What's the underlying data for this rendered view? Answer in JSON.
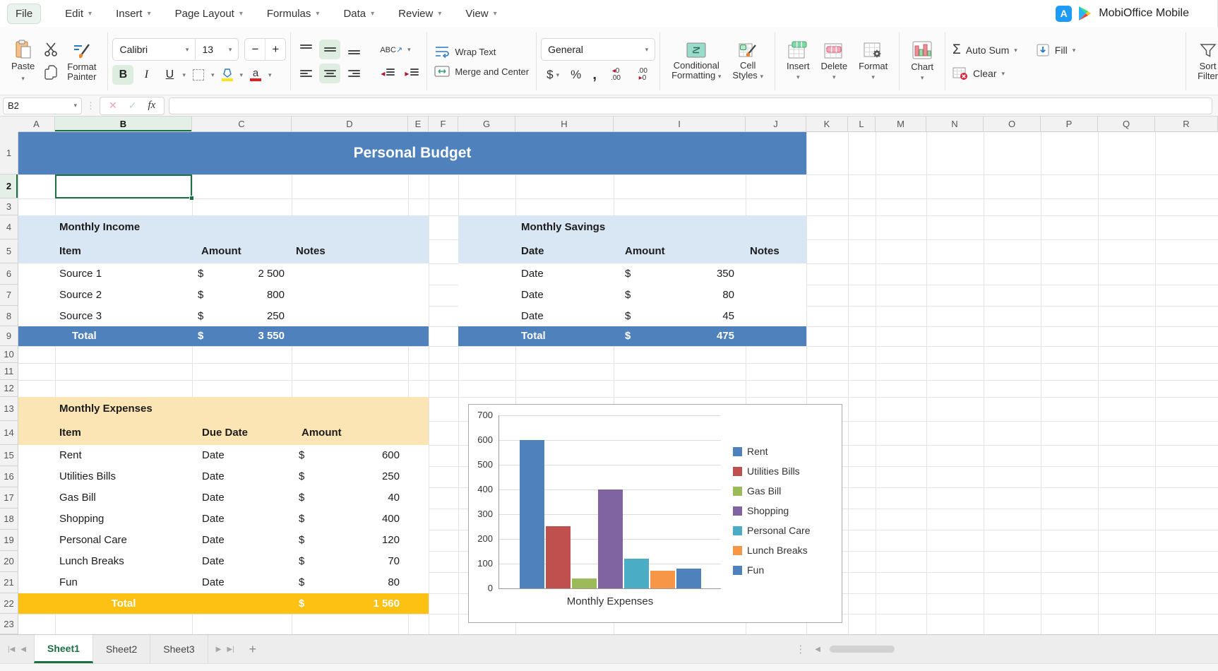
{
  "menu": {
    "items": [
      "File",
      "Edit",
      "Insert",
      "Page Layout",
      "Formulas",
      "Data",
      "Review",
      "View"
    ],
    "brand": "MobiOffice Mobile"
  },
  "toolbar": {
    "paste": "Paste",
    "format_painter_line1": "Format",
    "format_painter_line2": "Painter",
    "font_name": "Calibri",
    "font_size": "13",
    "font_minus": "−",
    "font_plus": "+",
    "bold": "B",
    "italic": "I",
    "underline": "U",
    "font_color_glyph": "a",
    "orientation": "ABC",
    "wrap_text": "Wrap Text",
    "merge_center": "Merge and Center",
    "number_format": "General",
    "currency": "$",
    "percent": "%",
    "comma": ",",
    "decimal_inc_top": "0",
    "decimal_inc_bottom": ".00",
    "decimal_dec_top": ".00",
    "decimal_dec_bottom": "0",
    "conditional_line1": "Conditional",
    "conditional_line2": "Formatting",
    "cell_styles_line1": "Cell",
    "cell_styles_line2": "Styles",
    "insert": "Insert",
    "delete": "Delete",
    "format": "Format",
    "chart": "Chart",
    "sigma": "Σ",
    "auto_sum": "Auto Sum",
    "fill": "Fill",
    "clear": "Clear",
    "sort_line1": "Sort",
    "sort_line2": "Filter"
  },
  "formula_bar": {
    "name_box": "B2",
    "cancel": "✕",
    "confirm": "✓",
    "fx": "fx",
    "value": ""
  },
  "grid": {
    "columns": [
      "A",
      "B",
      "C",
      "D",
      "E",
      "F",
      "G",
      "H",
      "I",
      "J",
      "K",
      "L",
      "M",
      "N",
      "O",
      "P",
      "Q",
      "R"
    ],
    "row_count": 23,
    "selection": {
      "cell": "B2",
      "column": "B",
      "row": 2
    }
  },
  "sheet_content": {
    "title": "Personal Budget",
    "income": {
      "title": "Monthly Income",
      "headers": [
        "Item",
        "Amount",
        "Notes"
      ],
      "rows": [
        {
          "item": "Source 1",
          "currency": "$",
          "amount": "2 500"
        },
        {
          "item": "Source 2",
          "currency": "$",
          "amount": "800"
        },
        {
          "item": "Source 3",
          "currency": "$",
          "amount": "250"
        }
      ],
      "total": {
        "label": "Total",
        "currency": "$",
        "amount": "3 550"
      }
    },
    "savings": {
      "title": "Monthly Savings",
      "headers": [
        "Date",
        "Amount",
        "Notes"
      ],
      "rows": [
        {
          "item": "Date",
          "currency": "$",
          "amount": "350"
        },
        {
          "item": "Date",
          "currency": "$",
          "amount": "80"
        },
        {
          "item": "Date",
          "currency": "$",
          "amount": "45"
        }
      ],
      "total": {
        "label": "Total",
        "currency": "$",
        "amount": "475"
      }
    },
    "expenses": {
      "title": "Monthly Expenses",
      "headers": [
        "Item",
        "Due Date",
        "Amount"
      ],
      "rows": [
        {
          "item": "Rent",
          "due": "Date",
          "currency": "$",
          "amount": "600"
        },
        {
          "item": "Utilities Bills",
          "due": "Date",
          "currency": "$",
          "amount": "250"
        },
        {
          "item": "Gas Bill",
          "due": "Date",
          "currency": "$",
          "amount": "40"
        },
        {
          "item": "Shopping",
          "due": "Date",
          "currency": "$",
          "amount": "400"
        },
        {
          "item": "Personal Care",
          "due": "Date",
          "currency": "$",
          "amount": "120"
        },
        {
          "item": "Lunch Breaks",
          "due": "Date",
          "currency": "$",
          "amount": "70"
        },
        {
          "item": "Fun",
          "due": "Date",
          "currency": "$",
          "amount": "80"
        }
      ],
      "total": {
        "label": "Total",
        "currency": "$",
        "amount": "1 560"
      }
    }
  },
  "chart_data": {
    "type": "bar",
    "title": "",
    "xlabel": "Monthly Expenses",
    "ylabel": "",
    "ylim": [
      0,
      700
    ],
    "ytick_step": 100,
    "grid": true,
    "legend_position": "right",
    "series": [
      {
        "name": "Rent",
        "value": 600,
        "color": "#4f81bd"
      },
      {
        "name": "Utilities Bills",
        "value": 250,
        "color": "#c0504d"
      },
      {
        "name": "Gas Bill",
        "value": 40,
        "color": "#9bbb59"
      },
      {
        "name": "Shopping",
        "value": 400,
        "color": "#8064a2"
      },
      {
        "name": "Personal Care",
        "value": 120,
        "color": "#4bacc6"
      },
      {
        "name": "Lunch Breaks",
        "value": 70,
        "color": "#f79646"
      },
      {
        "name": "Fun",
        "value": 80,
        "color": "#4f81bd"
      }
    ]
  },
  "tabs": {
    "sheets": [
      "Sheet1",
      "Sheet2",
      "Sheet3"
    ],
    "active_index": 0,
    "add_label": "+"
  },
  "colors": {
    "banner_blue": "#4f81bd",
    "band_blue": "#d9e6f4",
    "band_orange": "#fbe5b4",
    "total_orange": "#fcc113",
    "selection_green": "#1d7044",
    "brand_green": "#217346"
  }
}
